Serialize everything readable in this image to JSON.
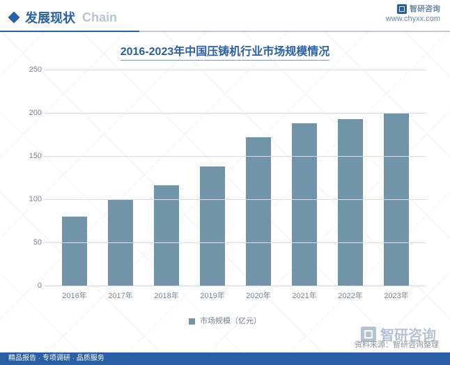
{
  "header": {
    "title_cn": "发展现状",
    "title_en": "Chain",
    "brand": "智研咨询",
    "url": "www.chyxx.com"
  },
  "chart": {
    "type": "bar",
    "title": "2016-2023年中国压铸机行业市场规模情况",
    "categories": [
      "2016年",
      "2017年",
      "2018年",
      "2019年",
      "2020年",
      "2021年",
      "2022年",
      "2023年"
    ],
    "values": [
      80,
      100,
      116,
      138,
      172,
      188,
      193,
      200
    ],
    "bar_color": "#7194a8",
    "legend_label": "市场规模（亿元）",
    "ylim": [
      0,
      250
    ],
    "ytick_step": 50,
    "grid_color": "#d7dde5",
    "background_color": "#ffffff",
    "axis_label_color": "#7a8490",
    "axis_label_fontsize": 11,
    "title_color": "#2b5fa3",
    "title_fontsize": 16,
    "bar_width": 0.56
  },
  "footer": {
    "source": "资料来源：智研咨询整理",
    "tagline": "精品报告 · 专项调研 · 品质服务"
  },
  "watermark": {
    "brand": "智研咨询"
  },
  "colors": {
    "primary": "#2b5fa3",
    "light_text": "#b8c5d6"
  }
}
